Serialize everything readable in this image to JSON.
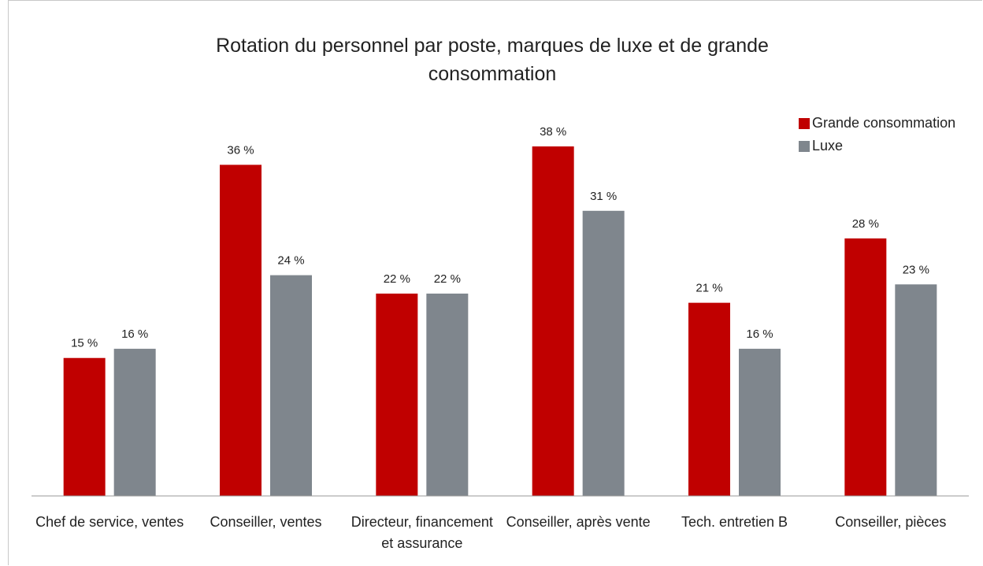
{
  "chart_data": {
    "type": "bar",
    "title": "Rotation du personnel par poste, marques de luxe et de grande consommation",
    "categories": [
      "Chef de service, ventes",
      "Conseiller, ventes",
      "Directeur, financement et assurance",
      "Conseiller, après vente",
      "Tech. entretien B",
      "Conseiller, pièces"
    ],
    "series": [
      {
        "name": "Grande consommation",
        "color": "#c00000",
        "values": [
          15,
          36,
          22,
          38,
          21,
          28
        ],
        "value_labels": [
          "15 %",
          "36 %",
          "22 %",
          "38 %",
          "21 %",
          "28 %"
        ]
      },
      {
        "name": "Luxe",
        "color": "#7f868d",
        "values": [
          16,
          24,
          22,
          31,
          16,
          23
        ],
        "value_labels": [
          "16 %",
          "24 %",
          "22 %",
          "31 %",
          "16 %",
          "23 %"
        ]
      }
    ],
    "legend": "right"
  }
}
